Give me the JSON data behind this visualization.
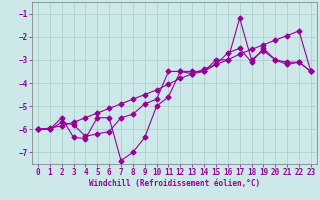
{
  "xlabel": "Windchill (Refroidissement éolien,°C)",
  "x": [
    0,
    1,
    2,
    3,
    4,
    5,
    6,
    7,
    8,
    9,
    10,
    11,
    12,
    13,
    14,
    15,
    16,
    17,
    18,
    19,
    20,
    21,
    22,
    23
  ],
  "line1": [
    -6.0,
    -6.0,
    -5.5,
    -6.35,
    -6.4,
    -5.5,
    -5.5,
    -7.35,
    -7.0,
    -6.35,
    -5.0,
    -4.6,
    -3.5,
    -3.5,
    -3.5,
    -3.0,
    -3.0,
    -1.2,
    -3.0,
    -2.6,
    -3.0,
    -3.1,
    -3.1,
    -3.5
  ],
  "line2": [
    -6.0,
    -6.0,
    -5.7,
    -5.8,
    -6.3,
    -6.2,
    -6.1,
    -5.5,
    -5.35,
    -4.9,
    -4.7,
    -3.5,
    -3.5,
    -3.6,
    -3.5,
    -3.2,
    -2.7,
    -2.5,
    -3.1,
    -2.5,
    -3.0,
    -3.2,
    -3.1,
    -3.5
  ],
  "line3": [
    -6.0,
    -5.95,
    -5.85,
    -5.7,
    -5.5,
    -5.3,
    -5.1,
    -4.9,
    -4.7,
    -4.5,
    -4.3,
    -4.05,
    -3.8,
    -3.6,
    -3.4,
    -3.2,
    -3.0,
    -2.75,
    -2.55,
    -2.35,
    -2.15,
    -1.95,
    -1.75,
    -3.5
  ],
  "line_color": "#990099",
  "bg_color": "#cce8e8",
  "grid_color": "#aacccc",
  "ylim": [
    -7.5,
    -0.5
  ],
  "xlim": [
    -0.5,
    23.5
  ],
  "yticks": [
    -7,
    -6,
    -5,
    -4,
    -3,
    -2,
    -1
  ],
  "xticks": [
    0,
    1,
    2,
    3,
    4,
    5,
    6,
    7,
    8,
    9,
    10,
    11,
    12,
    13,
    14,
    15,
    16,
    17,
    18,
    19,
    20,
    21,
    22,
    23
  ],
  "marker": "D",
  "markersize": 2.5,
  "linewidth": 0.8,
  "tick_fontsize": 5.5,
  "xlabel_fontsize": 5.5
}
